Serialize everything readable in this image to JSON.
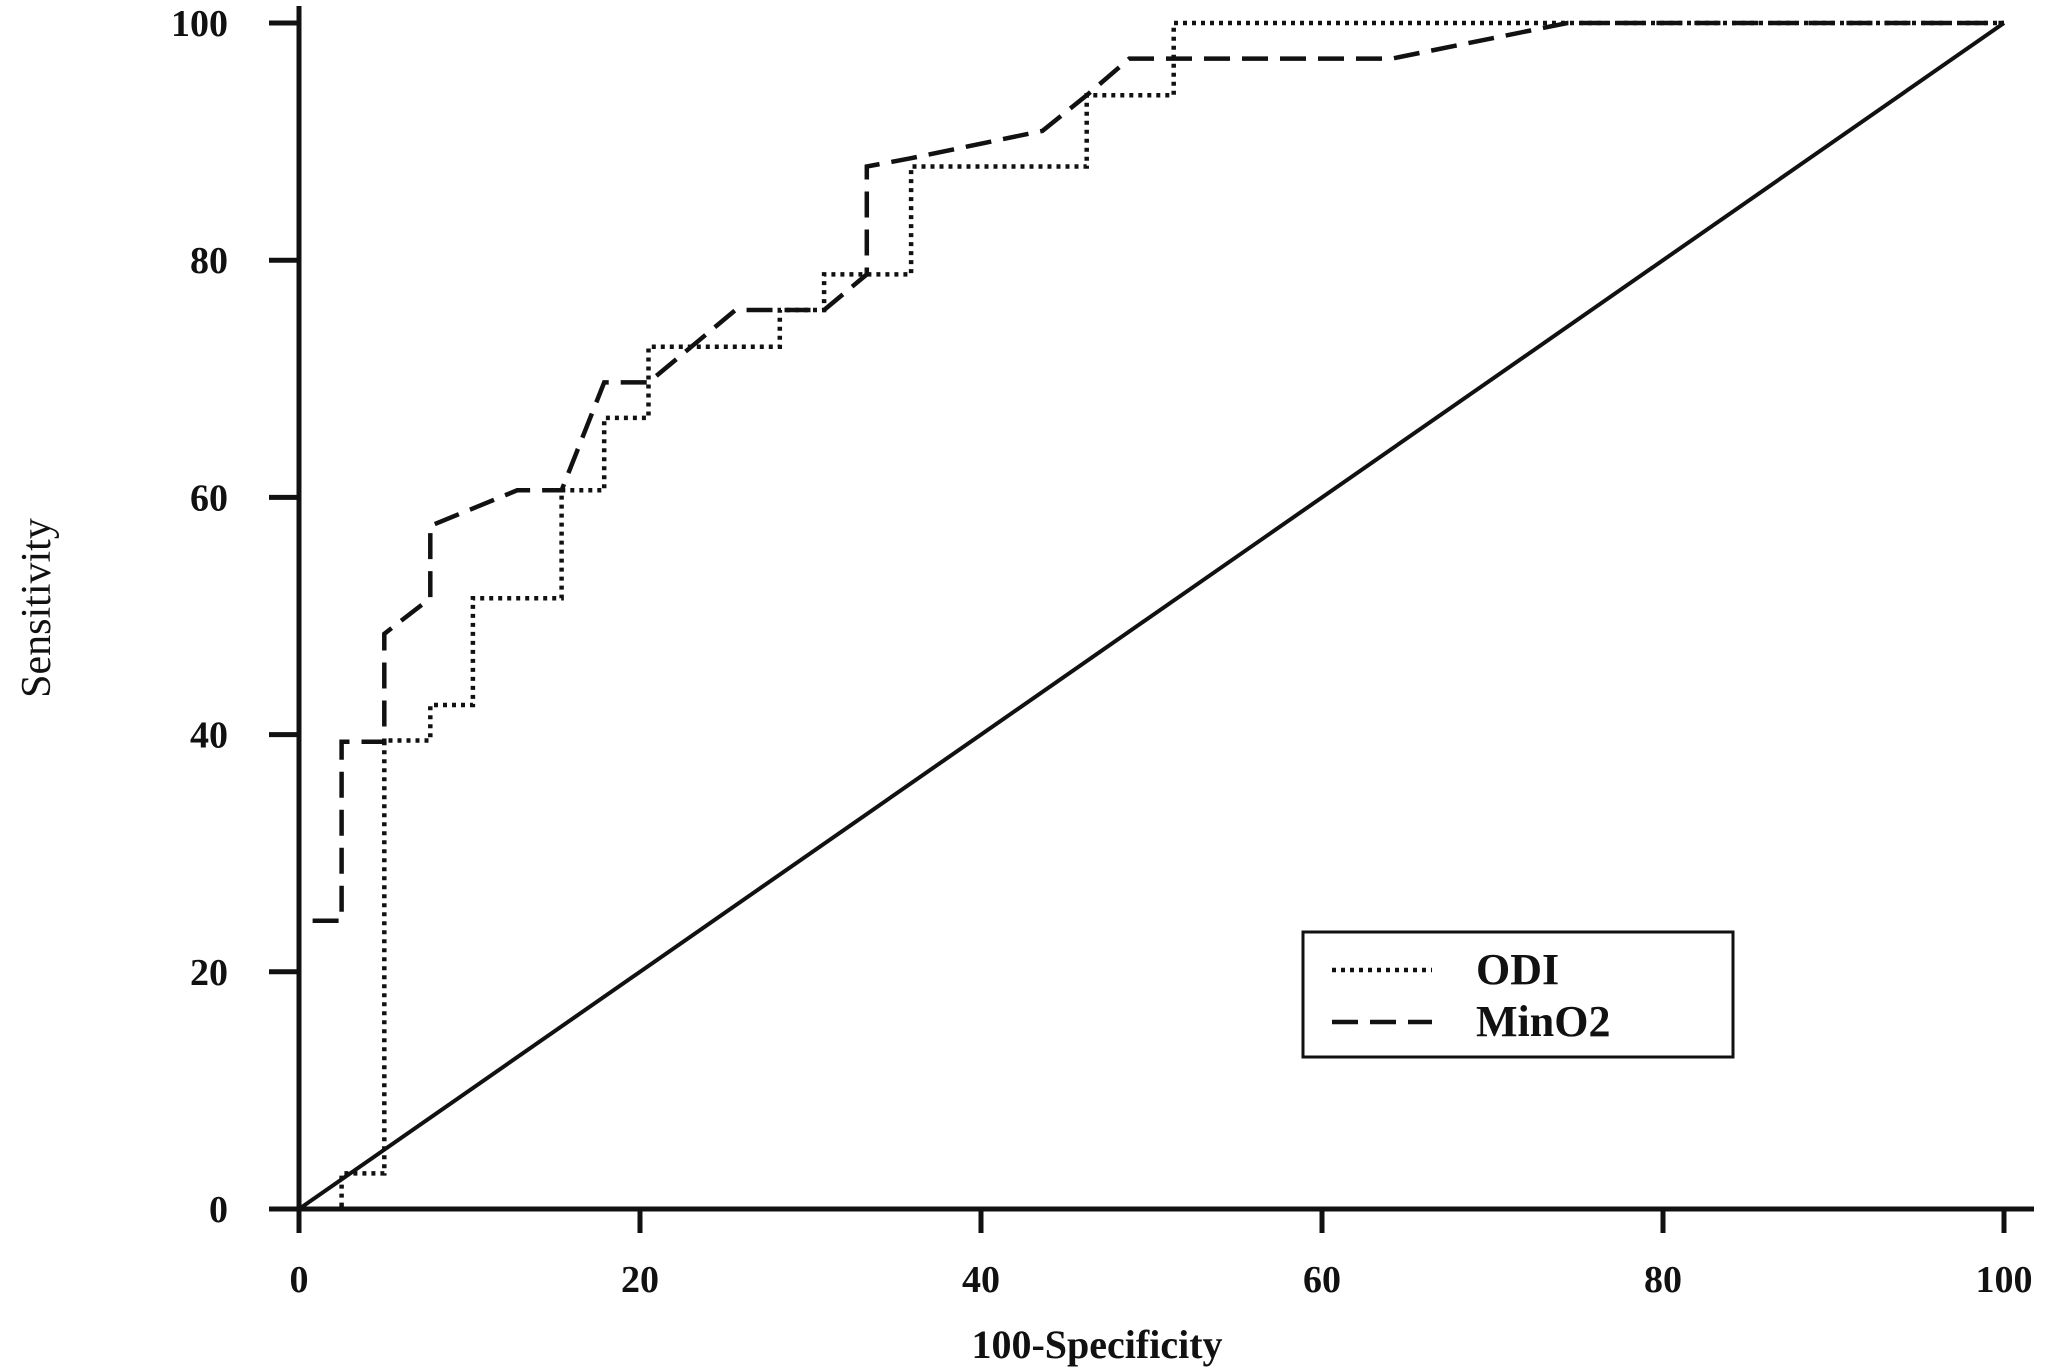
{
  "chart_data": {
    "type": "line",
    "title": "",
    "xlabel": "100-Specificity",
    "ylabel": "Sensitivity",
    "xlim": [
      0,
      100
    ],
    "ylim": [
      0,
      100
    ],
    "x_ticks": [
      "0",
      "20",
      "40",
      "60",
      "80",
      "100"
    ],
    "y_ticks": [
      "0",
      "20",
      "40",
      "60",
      "80",
      "100"
    ],
    "grid": false,
    "legend_position": "bottom-right",
    "series": [
      {
        "name": "ODI",
        "line_style": "dotted",
        "color": "#111111",
        "points": [
          [
            0,
            0
          ],
          [
            2.5,
            0
          ],
          [
            2.5,
            3
          ],
          [
            5,
            3
          ],
          [
            5,
            39.5
          ],
          [
            7.7,
            39.5
          ],
          [
            7.7,
            42.5
          ],
          [
            10.2,
            42.5
          ],
          [
            10.2,
            51.5
          ],
          [
            15.4,
            51.5
          ],
          [
            15.4,
            60.6
          ],
          [
            17.9,
            60.6
          ],
          [
            17.9,
            66.7
          ],
          [
            20.5,
            66.7
          ],
          [
            20.5,
            72.7
          ],
          [
            28.2,
            72.7
          ],
          [
            28.2,
            75.8
          ],
          [
            30.8,
            75.8
          ],
          [
            30.8,
            78.8
          ],
          [
            35.9,
            78.8
          ],
          [
            35.9,
            87.9
          ],
          [
            46.2,
            87.9
          ],
          [
            46.2,
            93.9
          ],
          [
            51.3,
            93.9
          ],
          [
            51.3,
            100
          ],
          [
            100,
            100
          ]
        ]
      },
      {
        "name": "MinO2",
        "line_style": "dashed",
        "color": "#111111",
        "points": [
          [
            0.8,
            24.3
          ],
          [
            2.5,
            24.3
          ],
          [
            2.5,
            39.4
          ],
          [
            5,
            39.4
          ],
          [
            5,
            48.5
          ],
          [
            7.7,
            51.5
          ],
          [
            7.7,
            57.6
          ],
          [
            12.8,
            60.6
          ],
          [
            15.4,
            60.6
          ],
          [
            17.9,
            69.7
          ],
          [
            20.5,
            69.7
          ],
          [
            25.6,
            75.8
          ],
          [
            30.8,
            75.8
          ],
          [
            33.3,
            78.8
          ],
          [
            33.3,
            87.9
          ],
          [
            35.9,
            88.6
          ],
          [
            43.6,
            90.9
          ],
          [
            46.2,
            93.9
          ],
          [
            48.7,
            97
          ],
          [
            64.1,
            97
          ],
          [
            74.4,
            100
          ],
          [
            100,
            100
          ]
        ]
      },
      {
        "name": "",
        "line_style": "solid",
        "color": "#111111",
        "points": [
          [
            0,
            0
          ],
          [
            100,
            100
          ]
        ]
      }
    ]
  }
}
